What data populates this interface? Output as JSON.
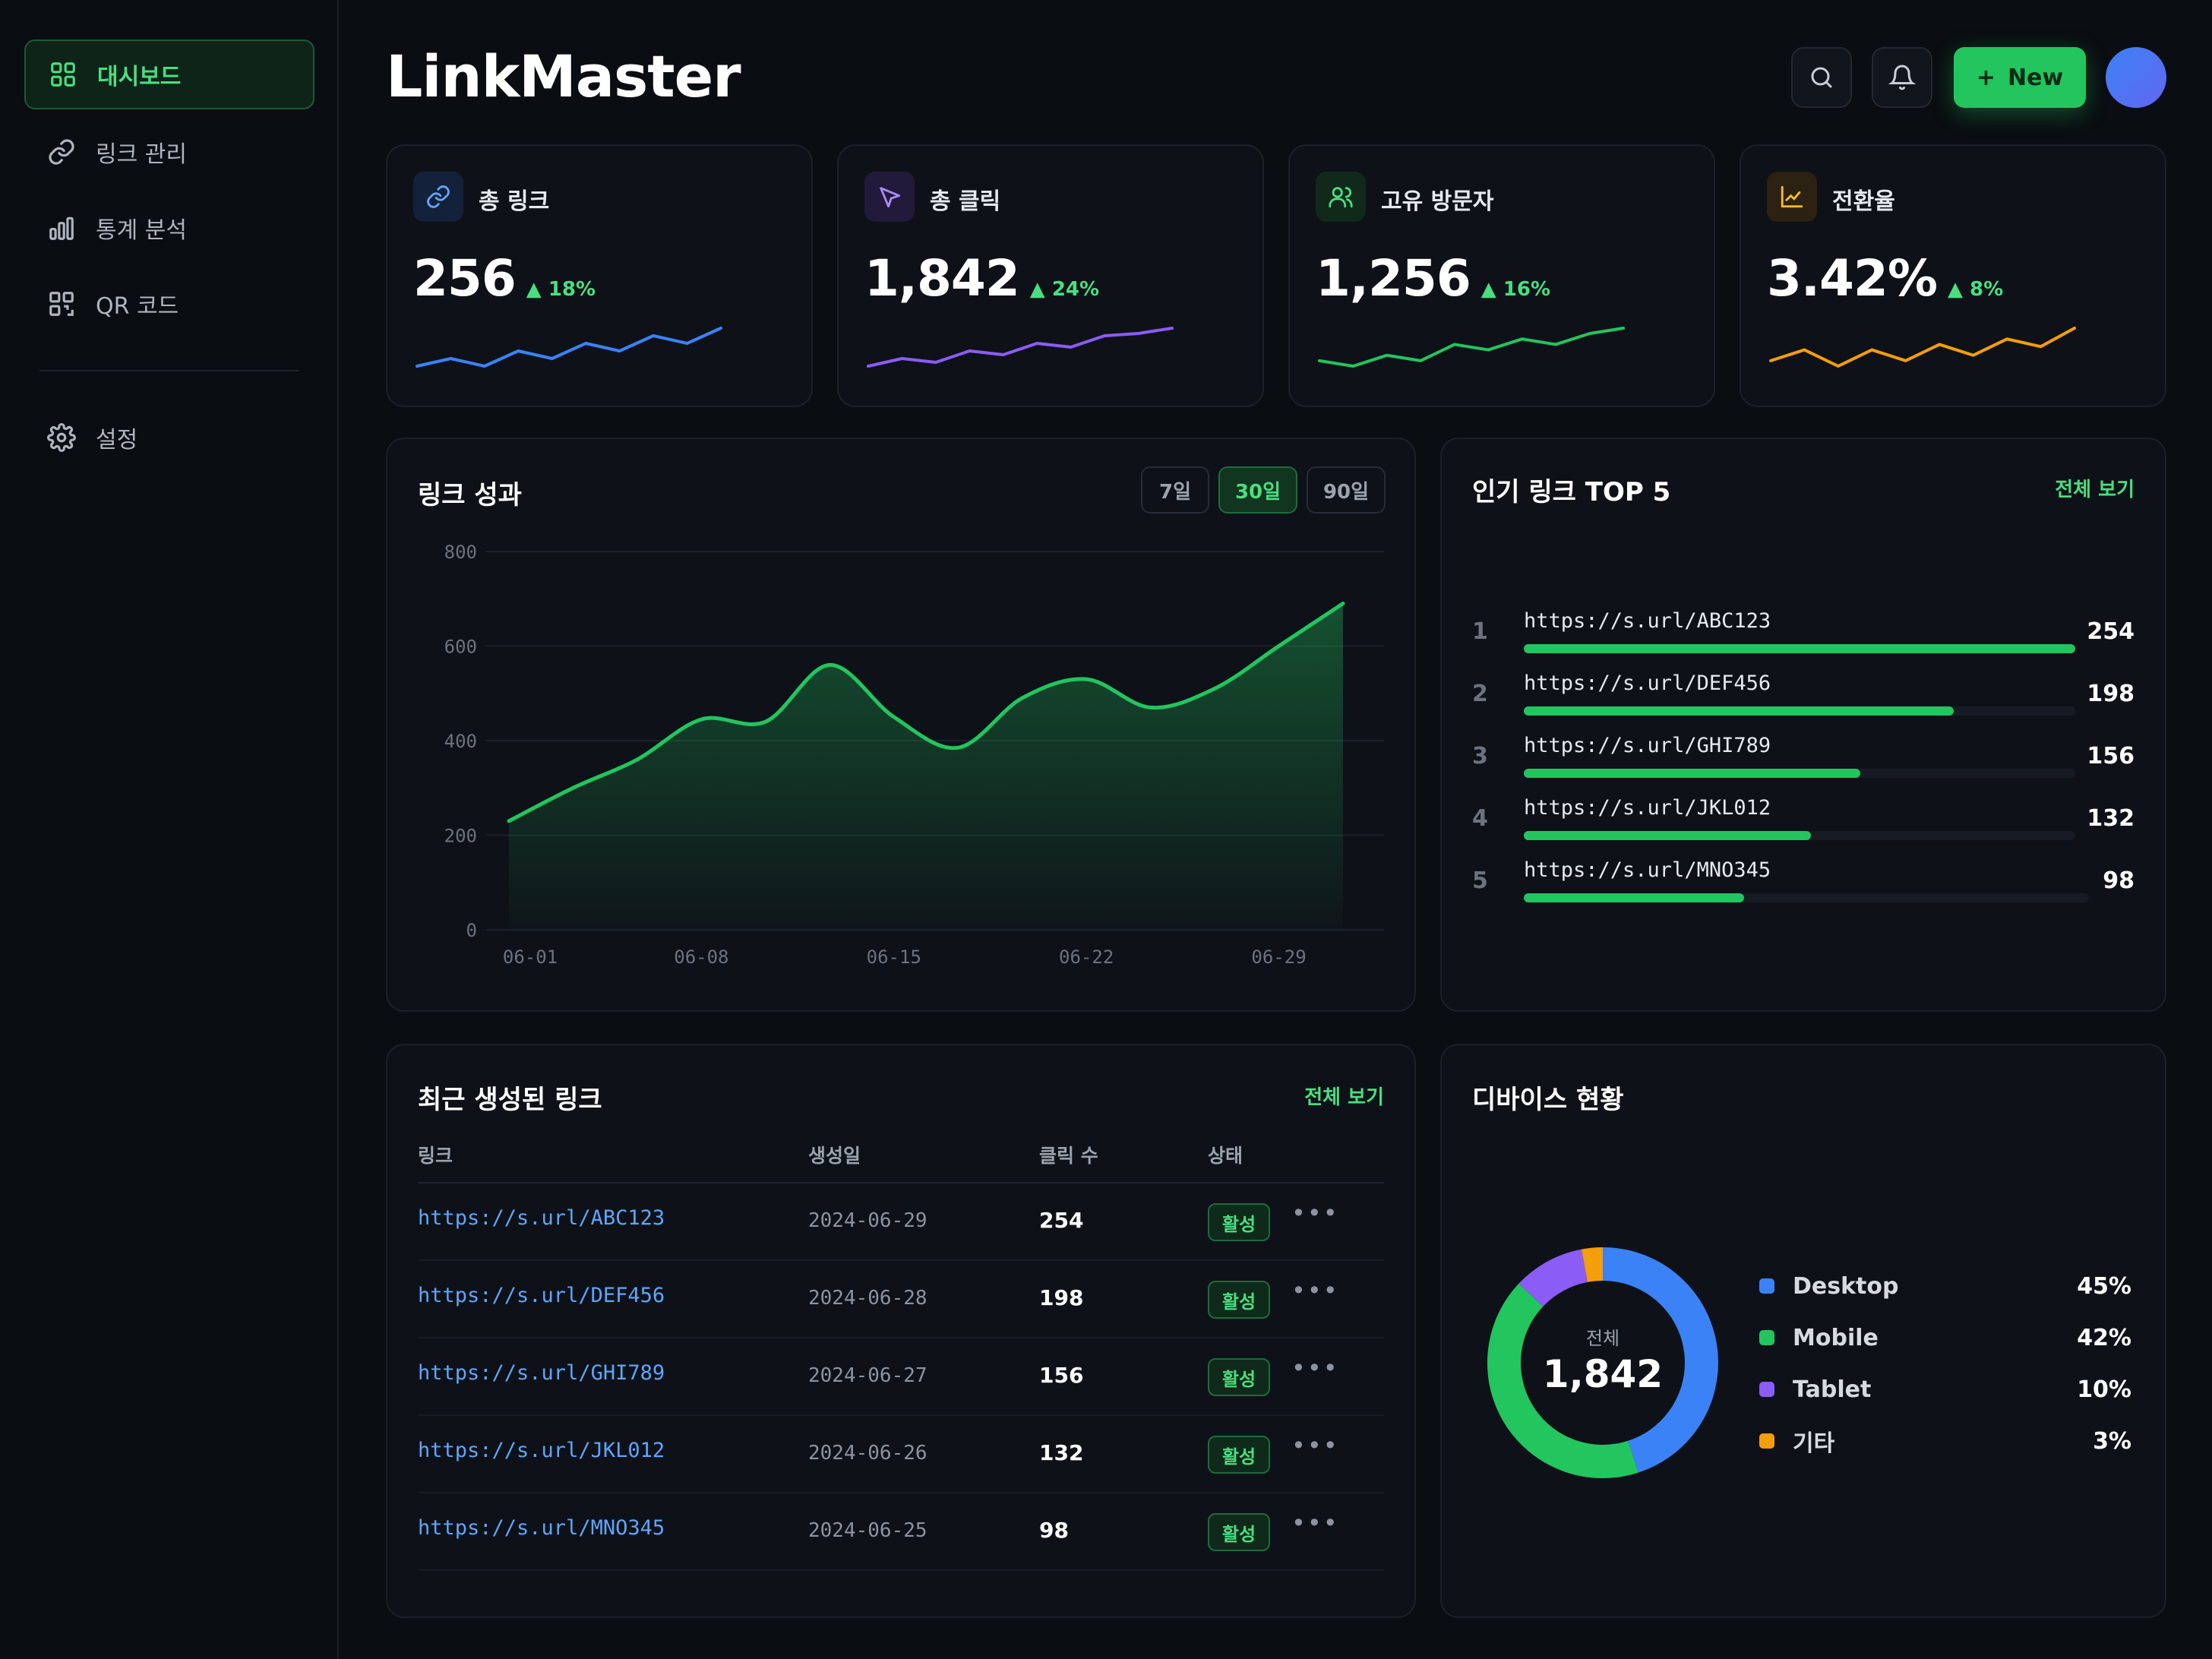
{
  "app": {
    "title": "LinkMaster"
  },
  "sidebar": {
    "items": [
      {
        "label": "대시보드",
        "icon": "grid-icon",
        "active": true
      },
      {
        "label": "링크 관리",
        "icon": "link-icon",
        "active": false
      },
      {
        "label": "통계 분석",
        "icon": "bar-chart-icon",
        "active": false
      },
      {
        "label": "QR 코드",
        "icon": "qr-icon",
        "active": false
      }
    ],
    "settings": {
      "label": "설정",
      "icon": "gear-icon"
    }
  },
  "header": {
    "new_button": "New",
    "new_icon": "+"
  },
  "stats": [
    {
      "label": "총 링크",
      "value": "256",
      "delta": "18%",
      "icon": "link-icon",
      "color": "#3b82f6",
      "spark": [
        2,
        3,
        2,
        4,
        3,
        5,
        4,
        6,
        5,
        7
      ]
    },
    {
      "label": "총 클릭",
      "value": "1,842",
      "delta": "24%",
      "icon": "cursor-icon",
      "color": "#8b5cf6",
      "spark": [
        2,
        3,
        2.5,
        4,
        3.5,
        5,
        4.5,
        6,
        6.3,
        7
      ]
    },
    {
      "label": "고유 방문자",
      "value": "1,256",
      "delta": "16%",
      "icon": "users-icon",
      "color": "#22c55e",
      "spark": [
        3,
        2.5,
        3.5,
        3,
        4.5,
        4,
        5,
        4.5,
        5.5,
        6
      ]
    },
    {
      "label": "전환율",
      "value": "3.42%",
      "delta": "8%",
      "icon": "trend-icon",
      "color": "#f59e0b",
      "spark": [
        3,
        4,
        2.5,
        4,
        3,
        4.5,
        3.5,
        5,
        4.3,
        6
      ]
    }
  ],
  "performance": {
    "title": "링크 성과",
    "ranges": [
      "7일",
      "30일",
      "90일"
    ],
    "active_range": "30일"
  },
  "chart_data": {
    "type": "area",
    "title": "링크 성과",
    "x": [
      "06-01",
      "06-03",
      "06-06",
      "06-08",
      "06-10",
      "06-13",
      "06-15",
      "06-17",
      "06-20",
      "06-22",
      "06-24",
      "06-26",
      "06-29",
      "06-30"
    ],
    "values": [
      230,
      300,
      360,
      445,
      440,
      560,
      450,
      385,
      490,
      530,
      470,
      510,
      600,
      690
    ],
    "xticks": [
      "06-01",
      "06-08",
      "06-15",
      "06-22",
      "06-29"
    ],
    "yticks": [
      0,
      200,
      400,
      600,
      800
    ],
    "ylim": [
      0,
      800
    ],
    "grid": true,
    "color": "#22c55e"
  },
  "top_links": {
    "title": "인기 링크 TOP 5",
    "view_all": "전체 보기",
    "items": [
      {
        "rank": "1",
        "url": "https://s.url/ABC123",
        "count": "254",
        "ratio": 1.0
      },
      {
        "rank": "2",
        "url": "https://s.url/DEF456",
        "count": "198",
        "ratio": 0.78
      },
      {
        "rank": "3",
        "url": "https://s.url/GHI789",
        "count": "156",
        "ratio": 0.61
      },
      {
        "rank": "4",
        "url": "https://s.url/JKL012",
        "count": "132",
        "ratio": 0.52
      },
      {
        "rank": "5",
        "url": "https://s.url/MNO345",
        "count": "98",
        "ratio": 0.39
      }
    ]
  },
  "recent": {
    "title": "최근 생성된 링크",
    "view_all": "전체 보기",
    "columns": [
      "링크",
      "생성일",
      "클릭 수",
      "상태"
    ],
    "rows": [
      {
        "url": "https://s.url/ABC123",
        "date": "2024-06-29",
        "clicks": "254",
        "status": "활성"
      },
      {
        "url": "https://s.url/DEF456",
        "date": "2024-06-28",
        "clicks": "198",
        "status": "활성"
      },
      {
        "url": "https://s.url/GHI789",
        "date": "2024-06-27",
        "clicks": "156",
        "status": "활성"
      },
      {
        "url": "https://s.url/JKL012",
        "date": "2024-06-26",
        "clicks": "132",
        "status": "활성"
      },
      {
        "url": "https://s.url/MNO345",
        "date": "2024-06-25",
        "clicks": "98",
        "status": "활성"
      }
    ],
    "more": "•••"
  },
  "devices": {
    "title": "디바이스 현황",
    "total_label": "전체",
    "total": "1,842",
    "items": [
      {
        "name": "Desktop",
        "pct": "45%",
        "value": 45,
        "color": "#3b82f6"
      },
      {
        "name": "Mobile",
        "pct": "42%",
        "value": 42,
        "color": "#22c55e"
      },
      {
        "name": "Tablet",
        "pct": "10%",
        "value": 10,
        "color": "#8b5cf6"
      },
      {
        "name": "기타",
        "pct": "3%",
        "value": 3,
        "color": "#f59e0b"
      }
    ]
  }
}
